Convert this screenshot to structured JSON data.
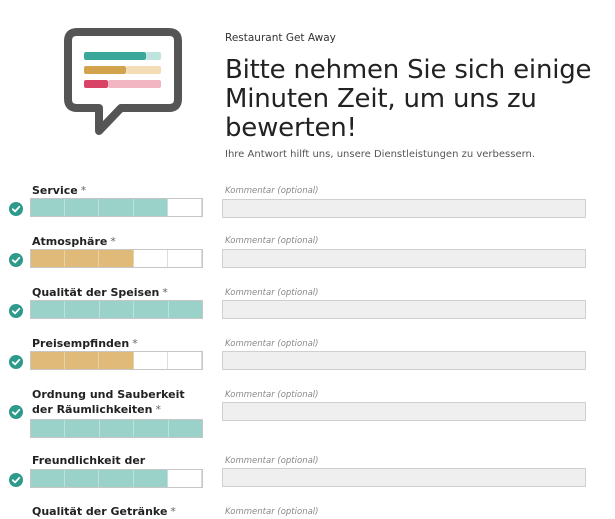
{
  "header": {
    "restaurant_name": "Restaurant Get Away",
    "title": "Bitte nehmen Sie sich einige Minuten Zeit, um uns zu bewerten!",
    "subtitle": "Ihre Antwort hilft uns, unsere Dienstleistungen zu verbessern."
  },
  "logo_icon": "speech-bubble-icon",
  "colors": {
    "teal": "#9ad2ca",
    "gold": "#dfba78",
    "check": "#2e9a8c"
  },
  "comment_placeholder": "Kommentar (optional)",
  "questions": [
    {
      "label": "Service",
      "required": "*",
      "rating": 4,
      "max": 5,
      "color": "#9ad2ca",
      "comment": ""
    },
    {
      "label": "Atmosphäre",
      "required": "*",
      "rating": 3,
      "max": 5,
      "color": "#dfba78",
      "comment": ""
    },
    {
      "label": "Qualität der Speisen",
      "required": "*",
      "rating": 5,
      "max": 5,
      "color": "#9ad2ca",
      "comment": ""
    },
    {
      "label": "Preisempfinden",
      "required": "*",
      "rating": 3,
      "max": 5,
      "color": "#dfba78",
      "comment": ""
    },
    {
      "label": "Ordnung und Sauberkeit der Räumlichkeiten",
      "required": "*",
      "rating": 5,
      "max": 5,
      "color": "#9ad2ca",
      "comment": ""
    },
    {
      "label": "Freundlichkeit der Mitarbeiter",
      "required": "*",
      "rating": 4,
      "max": 5,
      "color": "#9ad2ca",
      "comment": ""
    },
    {
      "label": "Qualität der Getränke",
      "required": "*",
      "rating": null,
      "max": 5,
      "color": "#9ad2ca",
      "comment": ""
    }
  ]
}
